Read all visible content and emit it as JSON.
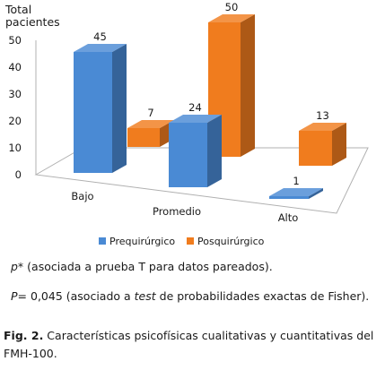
{
  "chart_data": {
    "type": "bar",
    "ylabel_lines": [
      "Total",
      "pacientes"
    ],
    "ylim": [
      0,
      50
    ],
    "yticks": [
      "0",
      "10",
      "20",
      "30",
      "40",
      "50"
    ],
    "categories": [
      "Bajo",
      "Promedio",
      "Alto"
    ],
    "series": [
      {
        "name": "Prequirúrgico",
        "values": [
          45,
          24,
          1
        ],
        "color": "#4a8ad4"
      },
      {
        "name": "Posquirúrgico",
        "values": [
          7,
          50,
          13
        ],
        "color": "#f07c1e"
      }
    ],
    "legend_position": "bottom",
    "grid": false
  },
  "notes": {
    "note1_symbol": "p*",
    "note1_text": " (asociada a prueba T para datos pareados).",
    "note2_symbol": "P",
    "note2_text_a": "= 0,045 (asociado a ",
    "note2_italic": "test",
    "note2_text_b": " de probabilidades exactas de Fisher)."
  },
  "caption": {
    "label": "Fig. 2.",
    "text": " Características psicofísicas cualitativas y cuantitativas del FMH-100."
  }
}
